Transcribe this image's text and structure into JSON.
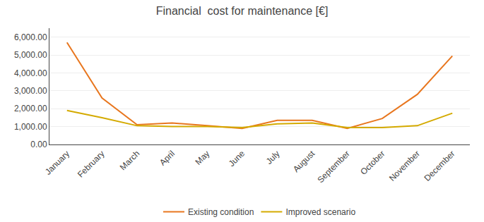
{
  "chart_data": {
    "type": "line",
    "title": "Financial  cost for maintenance [€]",
    "categories": [
      "January",
      "February",
      "March",
      "April",
      "May",
      "June",
      "July",
      "August",
      "September",
      "October",
      "November",
      "December"
    ],
    "series": [
      {
        "name": "Existing condition",
        "color": "#E8761E",
        "values": [
          5700,
          2600,
          1100,
          1200,
          1050,
          900,
          1350,
          1350,
          900,
          1450,
          2800,
          4950
        ]
      },
      {
        "name": "Improved scenario",
        "color": "#D4AA00",
        "values": [
          1900,
          1500,
          1050,
          1000,
          1000,
          950,
          1150,
          1200,
          950,
          950,
          1050,
          1750
        ]
      }
    ],
    "ylim": [
      0,
      6500
    ],
    "yticks": [
      {
        "value": 0,
        "label": "0.00"
      },
      {
        "value": 1000,
        "label": "1,000.00"
      },
      {
        "value": 2000,
        "label": "2,000.00"
      },
      {
        "value": 3000,
        "label": "3,000.00"
      },
      {
        "value": 4000,
        "label": "4,000.00"
      },
      {
        "value": 5000,
        "label": "5,000.00"
      },
      {
        "value": 6000,
        "label": "6,000.00"
      }
    ],
    "grid": true,
    "legend": "bottom"
  }
}
